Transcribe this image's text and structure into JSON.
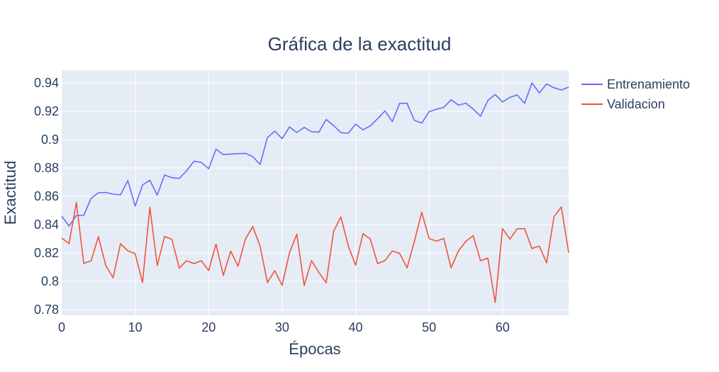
{
  "chart_data": {
    "type": "line",
    "title": "Gráfica de la exactitud",
    "xlabel": "Épocas",
    "ylabel": "Exactitud",
    "xlim": [
      0,
      69
    ],
    "ylim": [
      0.776,
      0.949
    ],
    "xticks": [
      0,
      10,
      20,
      30,
      40,
      50,
      60
    ],
    "xtick_labels": [
      "0",
      "10",
      "20",
      "30",
      "40",
      "50",
      "60"
    ],
    "yticks": [
      0.78,
      0.8,
      0.82,
      0.84,
      0.86,
      0.88,
      0.9,
      0.92,
      0.94
    ],
    "ytick_labels": [
      "0.78",
      "0.8",
      "0.82",
      "0.84",
      "0.86",
      "0.88",
      "0.9",
      "0.92",
      "0.94"
    ],
    "legend_position": "top-right outside",
    "grid": true,
    "x": [
      0,
      1,
      2,
      3,
      4,
      5,
      6,
      7,
      8,
      9,
      10,
      11,
      12,
      13,
      14,
      15,
      16,
      17,
      18,
      19,
      20,
      21,
      22,
      23,
      24,
      25,
      26,
      27,
      28,
      29,
      30,
      31,
      32,
      33,
      34,
      35,
      36,
      37,
      38,
      39,
      40,
      41,
      42,
      43,
      44,
      45,
      46,
      47,
      48,
      49,
      50,
      51,
      52,
      53,
      54,
      55,
      56,
      57,
      58,
      59,
      60,
      61,
      62,
      63,
      64,
      65,
      66,
      67,
      68,
      69
    ],
    "series": [
      {
        "name": "Entrenamiento",
        "color": "#636efa",
        "values": [
          0.846,
          0.839,
          0.8465,
          0.8465,
          0.8585,
          0.8625,
          0.8627,
          0.8615,
          0.861,
          0.8711,
          0.8531,
          0.868,
          0.8713,
          0.8608,
          0.875,
          0.8731,
          0.8726,
          0.878,
          0.8847,
          0.8839,
          0.8794,
          0.8932,
          0.8894,
          0.8898,
          0.8901,
          0.8903,
          0.888,
          0.8825,
          0.9014,
          0.906,
          0.9006,
          0.9089,
          0.905,
          0.9086,
          0.9056,
          0.9052,
          0.9142,
          0.9099,
          0.9049,
          0.9045,
          0.9109,
          0.9069,
          0.9097,
          0.9148,
          0.9202,
          0.9127,
          0.9256,
          0.9256,
          0.9136,
          0.9116,
          0.9197,
          0.9214,
          0.9227,
          0.9281,
          0.9243,
          0.9257,
          0.9216,
          0.9165,
          0.9276,
          0.9318,
          0.9266,
          0.9298,
          0.9315,
          0.9255,
          0.94,
          0.9329,
          0.9393,
          0.9366,
          0.935,
          0.937
        ]
      },
      {
        "name": "Validacion",
        "color": "#ef553b",
        "values": [
          0.8305,
          0.8266,
          0.8556,
          0.8126,
          0.8145,
          0.8315,
          0.8111,
          0.8025,
          0.8265,
          0.8215,
          0.8195,
          0.7991,
          0.8523,
          0.8111,
          0.8316,
          0.8296,
          0.8094,
          0.8145,
          0.8125,
          0.8145,
          0.8076,
          0.8262,
          0.8041,
          0.8213,
          0.8107,
          0.8297,
          0.8386,
          0.8248,
          0.7991,
          0.8075,
          0.7971,
          0.8201,
          0.8333,
          0.797,
          0.8146,
          0.8063,
          0.7989,
          0.8352,
          0.8454,
          0.8251,
          0.8113,
          0.8336,
          0.8298,
          0.8125,
          0.8146,
          0.8214,
          0.8197,
          0.8094,
          0.8282,
          0.8487,
          0.8302,
          0.8283,
          0.8303,
          0.8094,
          0.8215,
          0.8282,
          0.8322,
          0.8145,
          0.8164,
          0.785,
          0.8372,
          0.8298,
          0.8371,
          0.8371,
          0.8231,
          0.8249,
          0.813,
          0.8456,
          0.8525,
          0.8201
        ]
      }
    ]
  }
}
